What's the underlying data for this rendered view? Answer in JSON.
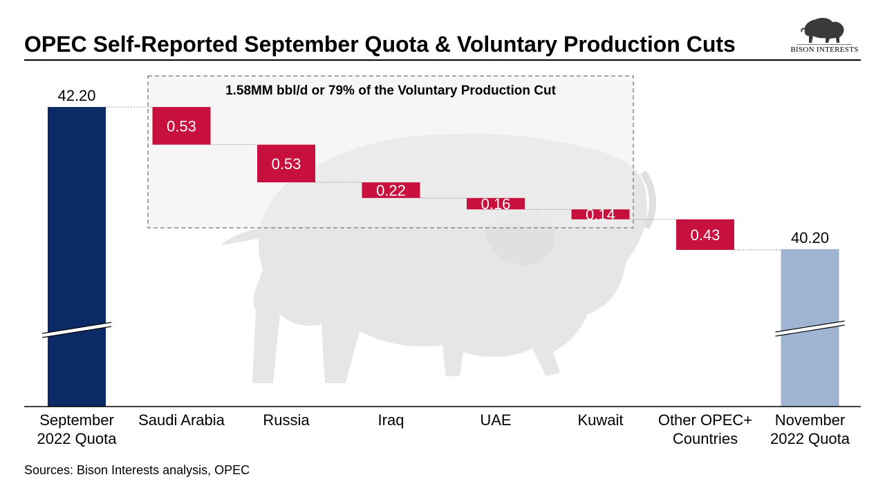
{
  "header": {
    "title": "OPEC Self-Reported September Quota & Voluntary Production Cuts",
    "logo_text": "BISON INTERESTS",
    "logo_icon": "bison-icon"
  },
  "footer": {
    "sources": "Sources: Bison Interests analysis, OPEC"
  },
  "colors": {
    "start_bar": "#0c2b66",
    "end_bar": "#9fb4d2",
    "decrease": "#c8103e",
    "watermark": "#e3e3e3"
  },
  "chart_data": {
    "type": "bar",
    "subtype": "waterfall",
    "categories": [
      [
        "September",
        "2022 Quota"
      ],
      [
        "Saudi Arabia"
      ],
      [
        "Russia"
      ],
      [
        "Iraq"
      ],
      [
        "UAE"
      ],
      [
        "Kuwait"
      ],
      [
        "Other OPEC+",
        "Countries"
      ],
      [
        "November",
        "2022 Quota"
      ]
    ],
    "values": [
      42.2,
      -0.53,
      -0.53,
      -0.22,
      -0.16,
      -0.14,
      -0.43,
      40.2
    ],
    "value_labels": [
      "42.20",
      "0.53",
      "0.53",
      "0.22",
      "0.16",
      "0.14",
      "0.43",
      "40.20"
    ],
    "bar_kinds": [
      "total",
      "decrease",
      "decrease",
      "decrease",
      "decrease",
      "decrease",
      "decrease",
      "total"
    ],
    "axis_break": true,
    "annotation": {
      "text": "1.58MM bbl/d or 79% of the Voluntary Production Cut",
      "covers": [
        "Saudi Arabia",
        "Russia",
        "Iraq",
        "UAE",
        "Kuwait"
      ]
    }
  }
}
